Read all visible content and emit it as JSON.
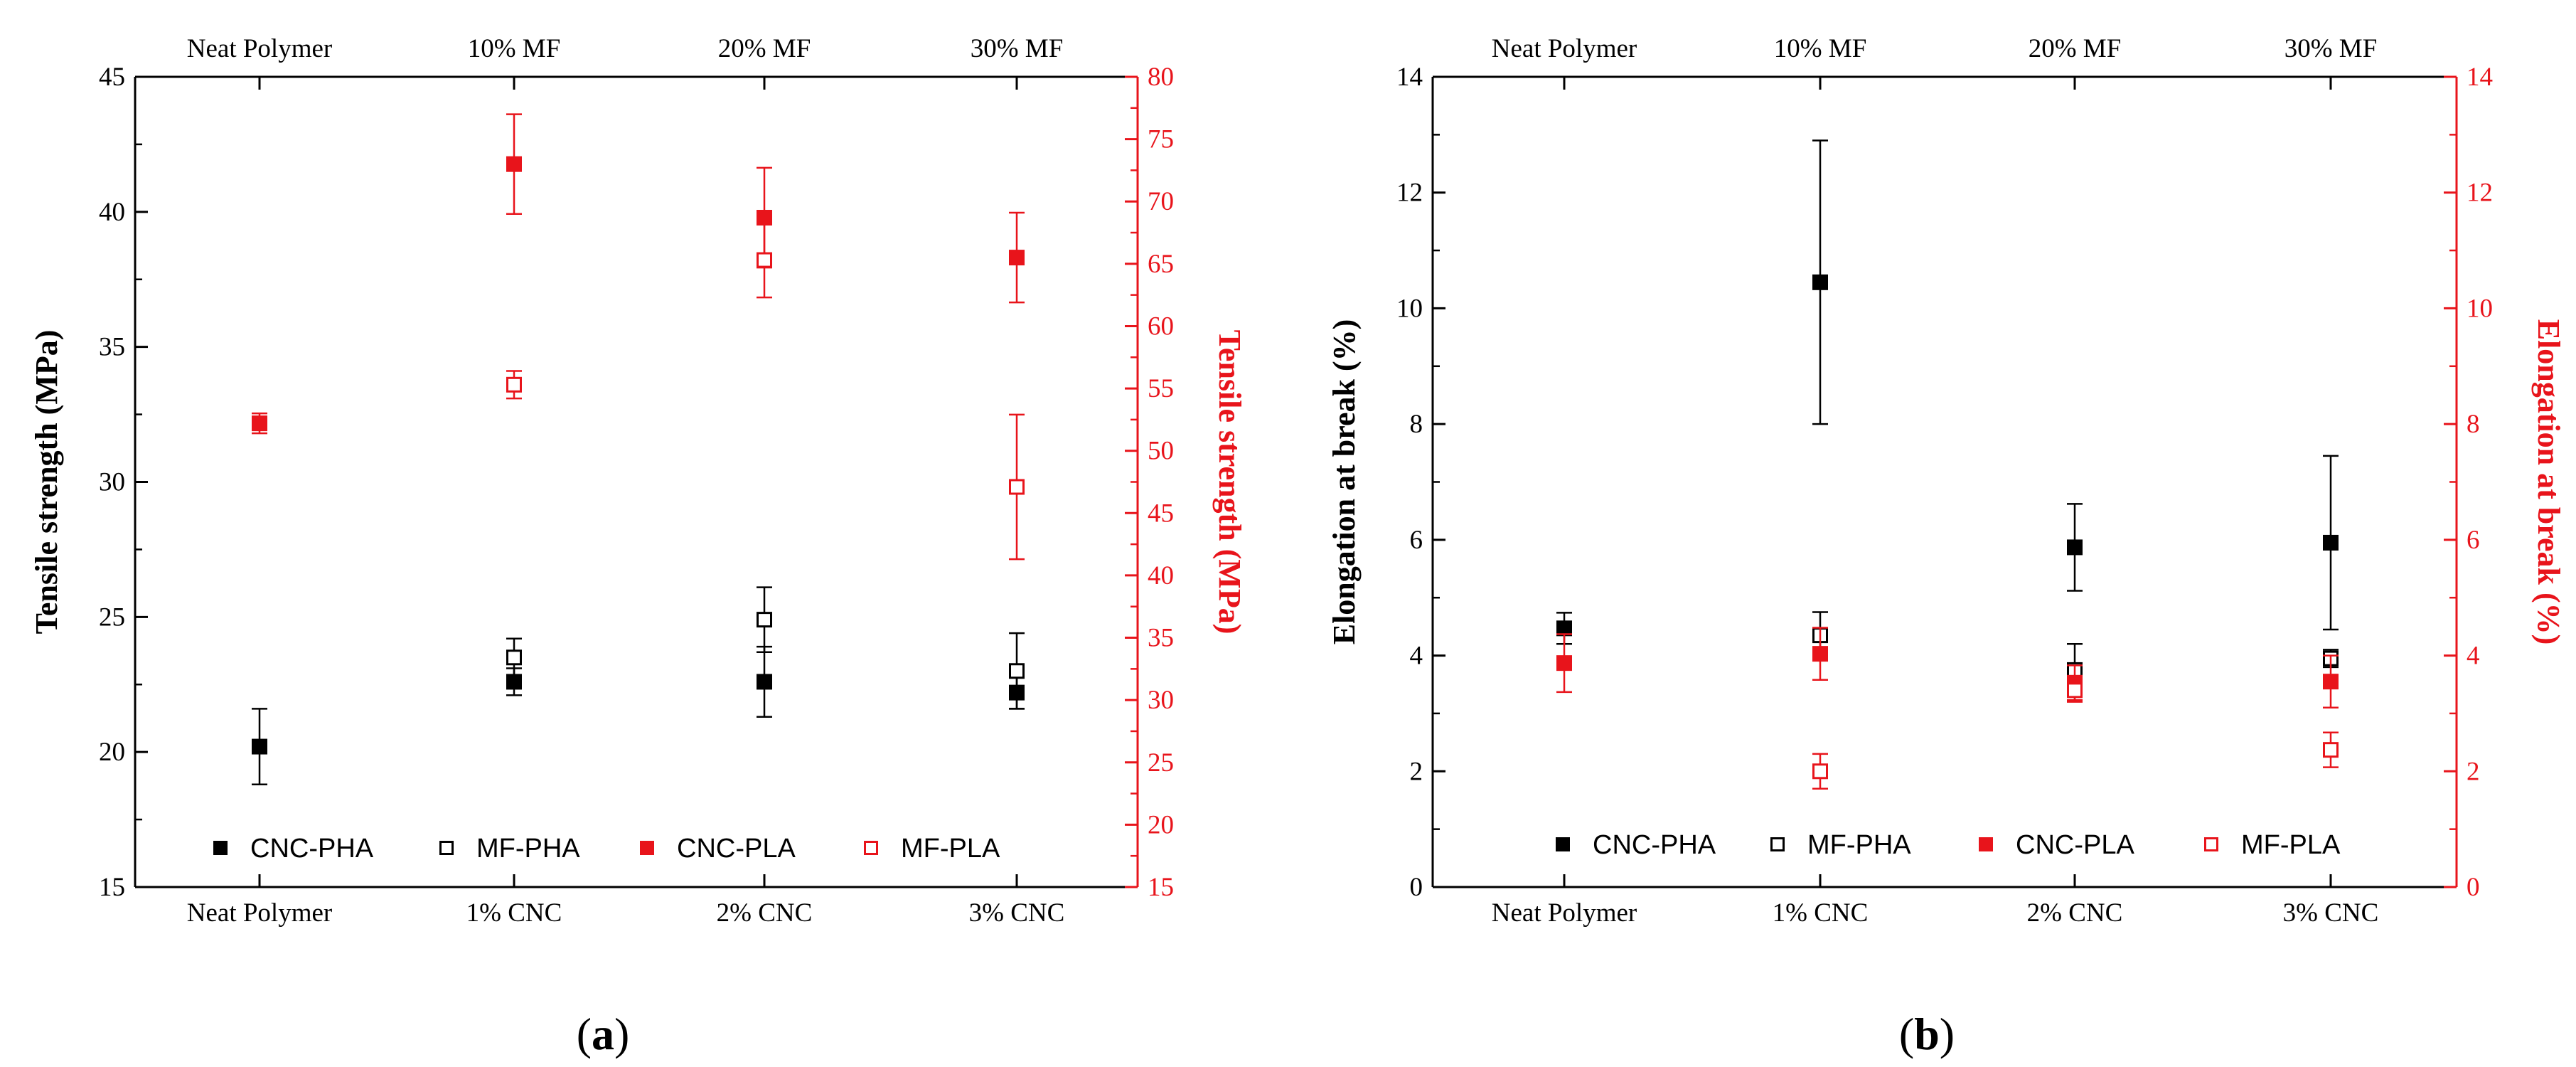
{
  "colors": {
    "black": "#000000",
    "red": "#e8141b"
  },
  "chart_data": [
    {
      "panel": "(a)",
      "panel_open": "(",
      "panel_letter": "a",
      "panel_close": ")",
      "type": "scatter",
      "categories_bottom": [
        "Neat Polymer",
        "1% CNC",
        "2% CNC",
        "3% CNC"
      ],
      "categories_top": [
        "Neat Polymer",
        "10% MF",
        "20% MF",
        "30% MF"
      ],
      "ylabel_left": "Tensile strength (MPa)",
      "ylabel_right": "Tensile strength (MPa)",
      "ylim_left": [
        15,
        45
      ],
      "yticks_left": [
        15,
        20,
        25,
        30,
        35,
        40,
        45
      ],
      "ylim_right": [
        15,
        80
      ],
      "yticks_right": [
        15,
        20,
        25,
        30,
        35,
        40,
        45,
        50,
        55,
        60,
        65,
        70,
        75,
        80
      ],
      "legend": [
        "CNC-PHA",
        "MF-PHA",
        "CNC-PLA",
        "MF-PLA"
      ],
      "series": [
        {
          "name": "CNC-PHA",
          "axis": "left",
          "marker": "filled",
          "color": "#000000",
          "cat": [
            0,
            1,
            2,
            3
          ],
          "values": [
            20.2,
            22.6,
            22.6,
            22.2
          ],
          "err": [
            1.4,
            0.5,
            1.3,
            0.6
          ]
        },
        {
          "name": "MF-PHA",
          "axis": "left",
          "marker": "open",
          "color": "#000000",
          "cat": [
            1,
            2,
            3
          ],
          "values": [
            23.5,
            24.9,
            23.0
          ],
          "err": [
            0.7,
            1.2,
            1.4
          ]
        },
        {
          "name": "CNC-PLA",
          "axis": "right",
          "marker": "filled",
          "color": "#e8141b",
          "cat": [
            0,
            1,
            2,
            3
          ],
          "values": [
            52.2,
            73.0,
            68.7,
            65.5
          ],
          "err": [
            0.8,
            4.0,
            4.0,
            3.6
          ]
        },
        {
          "name": "MF-PLA",
          "axis": "right",
          "marker": "open",
          "color": "#e8141b",
          "cat": [
            1,
            2,
            3
          ],
          "values": [
            55.3,
            65.3,
            47.1
          ],
          "err": [
            1.1,
            3.0,
            5.8
          ]
        }
      ]
    },
    {
      "panel": "(b)",
      "panel_open": "(",
      "panel_letter": "b",
      "panel_close": ")",
      "type": "scatter",
      "categories_bottom": [
        "Neat Polymer",
        "1% CNC",
        "2% CNC",
        "3% CNC"
      ],
      "categories_top": [
        "Neat Polymer",
        "10% MF",
        "20% MF",
        "30% MF"
      ],
      "ylabel_left": "Elongation at break (%)",
      "ylabel_right": "Elongation at break (%)",
      "ylim_left": [
        0,
        14
      ],
      "yticks_left": [
        0,
        2,
        4,
        6,
        8,
        10,
        12,
        14
      ],
      "ylim_right": [
        0,
        14
      ],
      "yticks_right": [
        0,
        2,
        4,
        6,
        8,
        10,
        12,
        14
      ],
      "legend": [
        "CNC-PHA",
        "MF-PHA",
        "CNC-PLA",
        "MF-PLA"
      ],
      "series": [
        {
          "name": "CNC-PHA",
          "axis": "left",
          "marker": "filled",
          "color": "#000000",
          "cat": [
            0,
            1,
            2,
            3
          ],
          "values": [
            4.47,
            10.45,
            5.87,
            5.95
          ],
          "err": [
            0.27,
            2.45,
            0.75,
            1.5
          ]
        },
        {
          "name": "MF-PHA",
          "axis": "left",
          "marker": "open",
          "color": "#000000",
          "cat": [
            1,
            2,
            3
          ],
          "values": [
            4.35,
            3.75,
            3.95
          ],
          "err": [
            0.4,
            0.45,
            0.15
          ]
        },
        {
          "name": "CNC-PLA",
          "axis": "right",
          "marker": "filled",
          "color": "#e8141b",
          "cat": [
            0,
            1,
            2,
            3
          ],
          "values": [
            3.87,
            4.03,
            3.53,
            3.55
          ],
          "err": [
            0.5,
            0.45,
            0.3,
            0.45
          ]
        },
        {
          "name": "MF-PLA",
          "axis": "right",
          "marker": "open",
          "color": "#e8141b",
          "cat": [
            1,
            2,
            3
          ],
          "values": [
            2.0,
            3.4,
            2.37
          ],
          "err": [
            0.3,
            0.2,
            0.3
          ]
        }
      ]
    }
  ]
}
